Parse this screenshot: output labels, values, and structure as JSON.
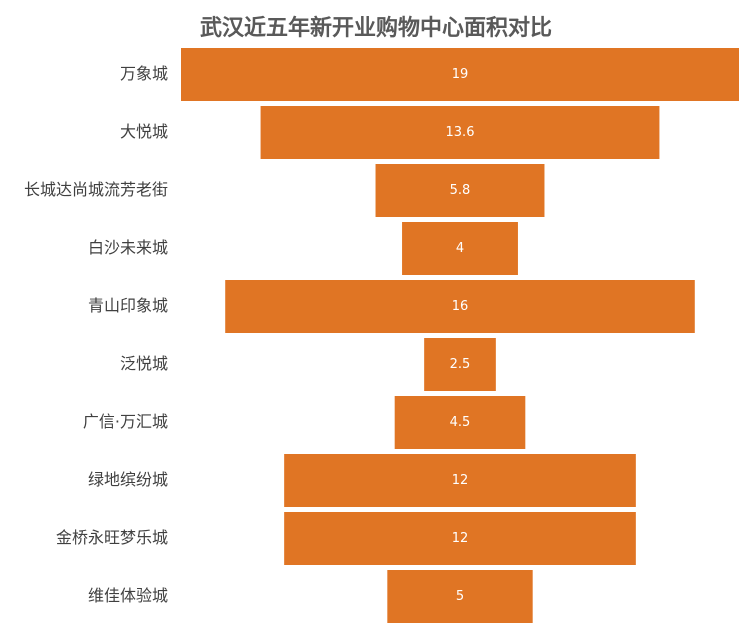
{
  "chart_data": {
    "type": "bar",
    "orientation": "horizontal-centered",
    "title": "武汉近五年新开业购物中心面积对比",
    "categories": [
      "万象城",
      "大悦城",
      "长城达尚城流芳老街",
      "白沙未来城",
      "青山印象城",
      "泛悦城",
      "广信·万汇城",
      "绿地缤纷城",
      "金桥永旺梦乐城",
      "维佳体验城"
    ],
    "values": [
      19,
      13.6,
      5.8,
      4,
      16,
      2.5,
      4.5,
      12,
      12,
      5
    ],
    "value_labels": [
      "19",
      "13.6",
      "5.8",
      "4",
      "16",
      "2.5",
      "4.5",
      "12",
      "12",
      "5"
    ],
    "xlim": [
      0,
      19
    ],
    "bar_color": "#E07524",
    "grid": false,
    "legend": "none"
  }
}
